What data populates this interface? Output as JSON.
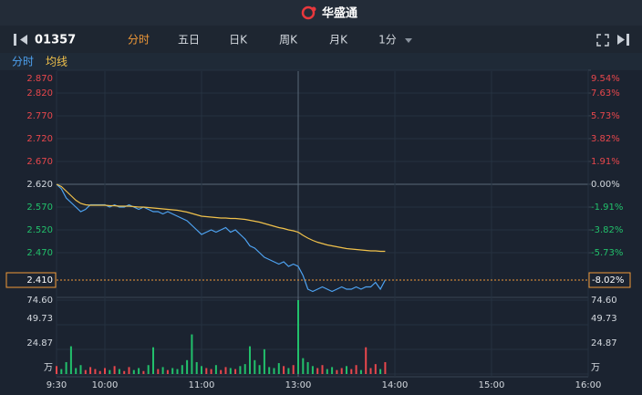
{
  "header": {
    "logo": "华盛通"
  },
  "toolbar": {
    "code": "01357",
    "tabs": [
      "分时",
      "五日",
      "日K",
      "周K",
      "月K",
      "1分"
    ],
    "active_tab": 0
  },
  "chart_data": {
    "type": "line",
    "x": [
      "9:30",
      "9:33",
      "9:36",
      "9:39",
      "9:42",
      "9:45",
      "9:48",
      "9:51",
      "9:54",
      "9:57",
      "10:00",
      "10:03",
      "10:06",
      "10:09",
      "10:12",
      "10:15",
      "10:18",
      "10:21",
      "10:24",
      "10:27",
      "10:30",
      "10:33",
      "10:36",
      "10:39",
      "10:42",
      "10:45",
      "10:48",
      "10:51",
      "10:54",
      "10:57",
      "11:00",
      "11:03",
      "11:06",
      "11:09",
      "11:12",
      "11:15",
      "11:18",
      "11:21",
      "11:24",
      "11:27",
      "11:30",
      "11:33",
      "11:36",
      "11:39",
      "11:42",
      "11:45",
      "11:48",
      "11:51",
      "11:54",
      "11:57",
      "13:00",
      "13:03",
      "13:06",
      "13:09",
      "13:12",
      "13:15",
      "13:18",
      "13:21",
      "13:24",
      "13:27",
      "13:30",
      "13:33",
      "13:36",
      "13:39",
      "13:42",
      "13:45",
      "13:48",
      "13:51",
      "13:54"
    ],
    "series": [
      {
        "name": "分时",
        "color": "#4ea3f2",
        "values": [
          2.62,
          2.61,
          2.59,
          2.58,
          2.57,
          2.56,
          2.565,
          2.575,
          2.575,
          2.575,
          2.575,
          2.57,
          2.575,
          2.57,
          2.57,
          2.575,
          2.57,
          2.565,
          2.57,
          2.565,
          2.56,
          2.56,
          2.555,
          2.56,
          2.555,
          2.55,
          2.545,
          2.54,
          2.53,
          2.52,
          2.51,
          2.515,
          2.52,
          2.515,
          2.52,
          2.525,
          2.515,
          2.52,
          2.51,
          2.5,
          2.485,
          2.48,
          2.47,
          2.46,
          2.455,
          2.45,
          2.445,
          2.45,
          2.44,
          2.445,
          2.44,
          2.42,
          2.39,
          2.385,
          2.39,
          2.395,
          2.39,
          2.385,
          2.39,
          2.395,
          2.39,
          2.39,
          2.395,
          2.39,
          2.395,
          2.395,
          2.405,
          2.39,
          2.41
        ]
      },
      {
        "name": "均线",
        "color": "#f0c14b",
        "values": [
          2.62,
          2.615,
          2.605,
          2.595,
          2.585,
          2.578,
          2.575,
          2.574,
          2.574,
          2.574,
          2.574,
          2.573,
          2.573,
          2.572,
          2.572,
          2.572,
          2.571,
          2.57,
          2.57,
          2.569,
          2.568,
          2.567,
          2.566,
          2.565,
          2.564,
          2.563,
          2.561,
          2.559,
          2.556,
          2.553,
          2.55,
          2.549,
          2.548,
          2.547,
          2.546,
          2.546,
          2.545,
          2.545,
          2.544,
          2.543,
          2.541,
          2.539,
          2.537,
          2.534,
          2.531,
          2.528,
          2.525,
          2.523,
          2.52,
          2.518,
          2.515,
          2.508,
          2.502,
          2.497,
          2.493,
          2.49,
          2.487,
          2.485,
          2.483,
          2.481,
          2.479,
          2.478,
          2.477,
          2.476,
          2.475,
          2.474,
          2.474,
          2.473,
          2.473
        ]
      }
    ],
    "ylim": [
      2.38,
      2.87
    ],
    "yticks": [
      {
        "value": 2.87,
        "label": "2.870"
      },
      {
        "value": 2.82,
        "label": "2.820"
      },
      {
        "value": 2.77,
        "label": "2.770"
      },
      {
        "value": 2.72,
        "label": "2.720"
      },
      {
        "value": 2.67,
        "label": "2.670"
      },
      {
        "value": 2.62,
        "label": "2.620"
      },
      {
        "value": 2.57,
        "label": "2.570"
      },
      {
        "value": 2.52,
        "label": "2.520"
      },
      {
        "value": 2.47,
        "label": "2.470"
      }
    ],
    "y2lim": [
      -9.16,
      9.54
    ],
    "y2ticks": [
      {
        "value": 9.54,
        "label": "9.54%"
      },
      {
        "value": 7.63,
        "label": "7.63%"
      },
      {
        "value": 5.73,
        "label": "5.73%"
      },
      {
        "value": 3.82,
        "label": "3.82%"
      },
      {
        "value": 1.91,
        "label": "1.91%"
      },
      {
        "value": 0,
        "label": "0.00%"
      },
      {
        "value": -1.91,
        "label": "-1.91%"
      },
      {
        "value": -3.82,
        "label": "-3.82%"
      },
      {
        "value": -5.73,
        "label": "-5.73%"
      }
    ],
    "last_price": {
      "value": 2.41,
      "label": "2.410"
    },
    "last_change": {
      "value": -8.02,
      "label": "-8.02%"
    },
    "up_color": "#e8474c",
    "down_color": "#22c06b",
    "xticks": [
      "9:30",
      "10:00",
      "11:00",
      "13:00",
      "14:00",
      "15:00",
      "16:00"
    ],
    "volume": {
      "values": [
        8,
        5,
        12,
        28,
        6,
        9,
        4,
        7,
        5,
        3,
        6,
        4,
        8,
        5,
        3,
        7,
        4,
        6,
        3,
        9,
        27,
        5,
        7,
        4,
        6,
        5,
        9,
        14,
        40,
        12,
        8,
        6,
        5,
        9,
        4,
        7,
        6,
        5,
        8,
        10,
        28,
        14,
        9,
        25,
        7,
        6,
        11,
        8,
        6,
        9,
        74.6,
        16,
        12,
        8,
        6,
        9,
        5,
        7,
        4,
        6,
        8,
        5,
        9,
        4,
        27,
        6,
        10,
        5,
        12
      ],
      "ylim": [
        0,
        74.6
      ],
      "yticks": [
        {
          "value": 74.6,
          "label": "74.60"
        },
        {
          "value": 49.73,
          "label": "49.73"
        },
        {
          "value": 24.87,
          "label": "24.87"
        },
        {
          "value": 0,
          "label": "万"
        }
      ]
    }
  }
}
